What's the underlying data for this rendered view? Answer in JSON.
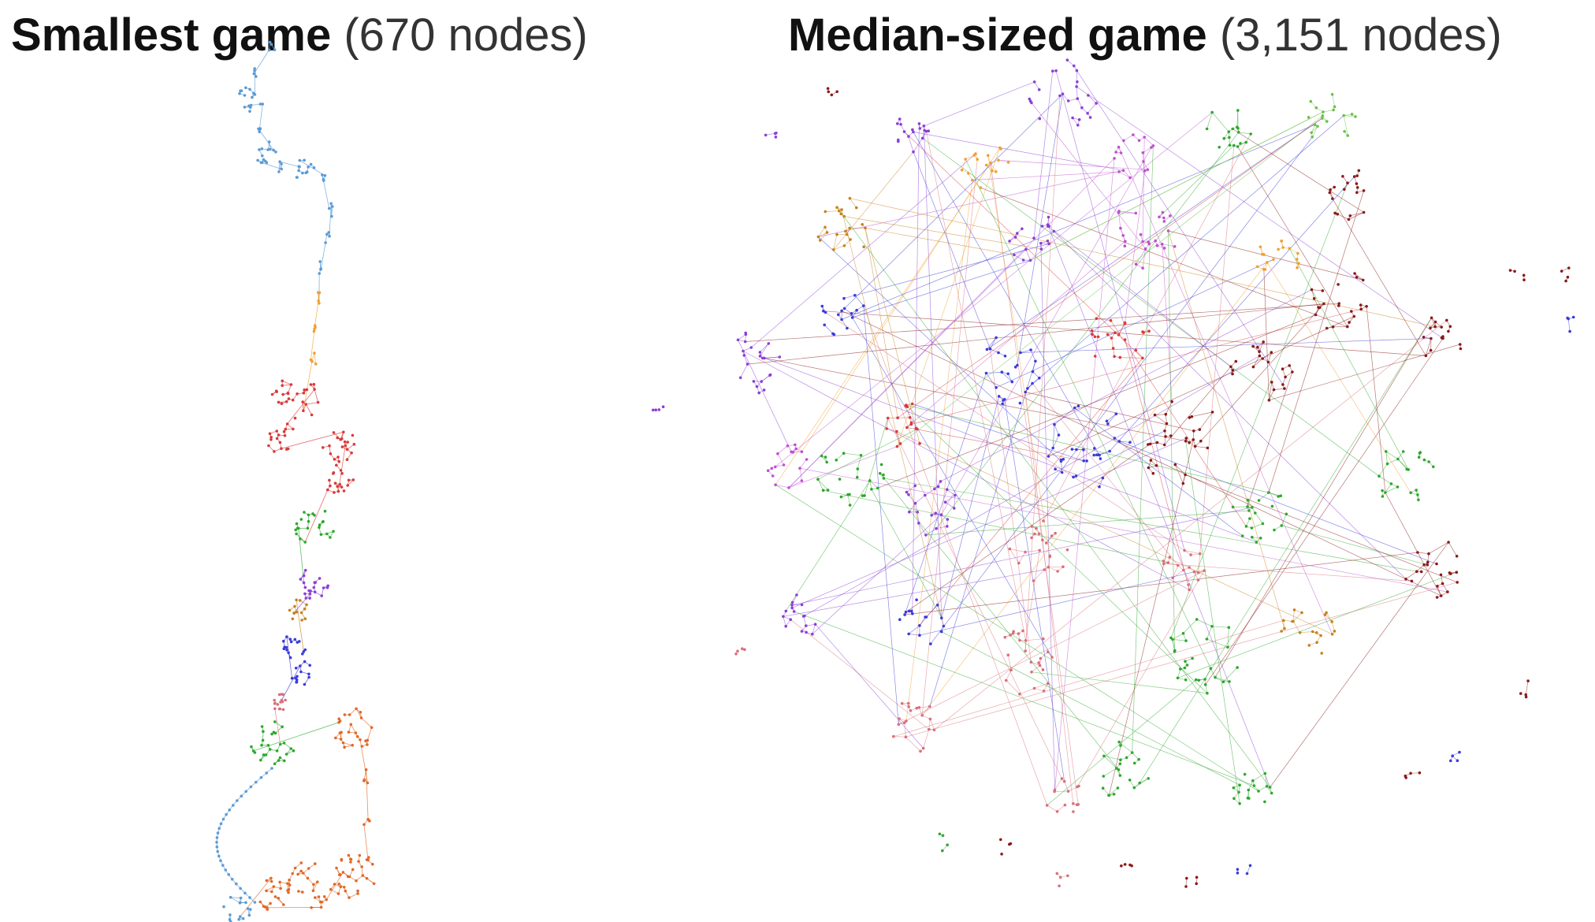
{
  "panels": [
    {
      "id": "smallest",
      "title_bold": "Smallest game",
      "title_rest": " (670 nodes)",
      "node_count": 670
    },
    {
      "id": "median",
      "title_bold": "Median-sized game",
      "title_rest": " (3,151 nodes)",
      "node_count": 3151
    }
  ],
  "palette": {
    "light_blue": "#5b9bd5",
    "orange": "#f0a030",
    "red": "#d93a3a",
    "green": "#2ea82e",
    "purple": "#8b3fd6",
    "brown_orange": "#c8821e",
    "blue": "#3b3bd9",
    "pink": "#d9707a",
    "orange_red": "#e06a28",
    "magenta": "#c050d0",
    "dark_red": "#8a1a1a",
    "light_green": "#6ac04a"
  }
}
